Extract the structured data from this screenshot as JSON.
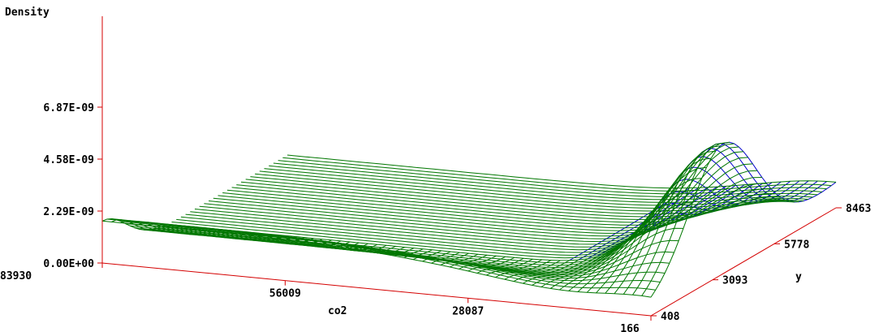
{
  "chart_data": {
    "type": "surface",
    "zlabel": "Density",
    "xlabel": "co2",
    "ylabel": "y",
    "z_ticks": [
      "0.00E+00",
      "2.29E-09",
      "4.58E-09",
      "6.87E-09"
    ],
    "z_tick_values": [
      0,
      2.29e-09,
      4.58e-09,
      6.87e-09
    ],
    "zlim": [
      0,
      8e-09
    ],
    "x_ticks": [
      "83930",
      "56009",
      "28087",
      "166"
    ],
    "x_tick_values": [
      83930,
      56009,
      28087,
      166
    ],
    "xlim": [
      166,
      83930
    ],
    "y_ticks": [
      "408",
      "3093",
      "5778",
      "8463"
    ],
    "y_tick_values": [
      408,
      3093,
      5778,
      8463
    ],
    "ylim": [
      408,
      8463
    ],
    "peak": {
      "co2": 166,
      "y": 3500,
      "density": 7.3e-09
    },
    "ridge_density": 1.85e-09,
    "colors": {
      "axis": "#d40000",
      "mesh_front": "#007700",
      "mesh_back": "#0000cc"
    },
    "grid": false
  }
}
